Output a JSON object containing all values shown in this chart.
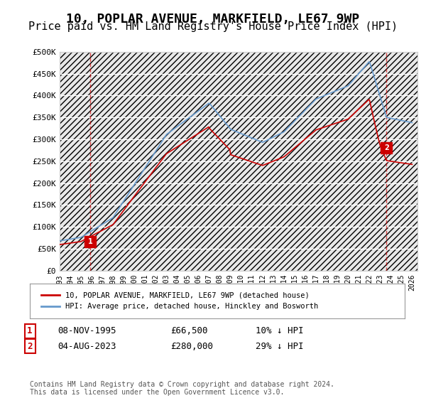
{
  "title": "10, POPLAR AVENUE, MARKFIELD, LE67 9WP",
  "subtitle": "Price paid vs. HM Land Registry's House Price Index (HPI)",
  "title_fontsize": 13,
  "subtitle_fontsize": 11,
  "ylabel_ticks": [
    "£0",
    "£50K",
    "£100K",
    "£150K",
    "£200K",
    "£250K",
    "£300K",
    "£350K",
    "£400K",
    "£450K",
    "£500K"
  ],
  "ytick_values": [
    0,
    50000,
    100000,
    150000,
    200000,
    250000,
    300000,
    350000,
    400000,
    450000,
    500000
  ],
  "ylim": [
    0,
    500000
  ],
  "xlim_start": 1993.0,
  "xlim_end": 2026.5,
  "hpi_color": "#6699cc",
  "price_color": "#cc0000",
  "background_color": "#ffffff",
  "transaction1_x": 1995.86,
  "transaction1_y": 66500,
  "transaction1_label": "1",
  "transaction2_x": 2023.59,
  "transaction2_y": 280000,
  "transaction2_label": "2",
  "legend_line1": "10, POPLAR AVENUE, MARKFIELD, LE67 9WP (detached house)",
  "legend_line2": "HPI: Average price, detached house, Hinckley and Bosworth",
  "table_row1": [
    "1",
    "08-NOV-1995",
    "£66,500",
    "10% ↓ HPI"
  ],
  "table_row2": [
    "2",
    "04-AUG-2023",
    "£280,000",
    "29% ↓ HPI"
  ],
  "footer": "Contains HM Land Registry data © Crown copyright and database right 2024.\nThis data is licensed under the Open Government Licence v3.0.",
  "xtick_years": [
    1993,
    1994,
    1995,
    1996,
    1997,
    1998,
    1999,
    2000,
    2001,
    2002,
    2003,
    2004,
    2005,
    2006,
    2007,
    2008,
    2009,
    2010,
    2011,
    2012,
    2013,
    2014,
    2015,
    2016,
    2017,
    2018,
    2019,
    2020,
    2021,
    2022,
    2023,
    2024,
    2025,
    2026
  ]
}
